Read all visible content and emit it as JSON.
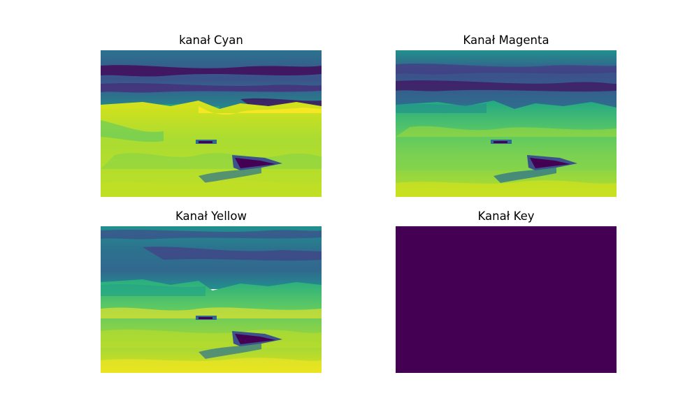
{
  "figure": {
    "background": "#ffffff",
    "colormap": "viridis",
    "palette": {
      "v_dark": "#440154",
      "v_purple": "#433e85",
      "v_blue": "#2c728e",
      "v_teal": "#21908d",
      "v_green": "#27ad81",
      "v_lime": "#5dc963",
      "v_yellowgreen": "#aadc32",
      "v_yellow": "#fde725"
    }
  },
  "chart_data": [
    {
      "type": "heatmap",
      "title": "kanał Cyan",
      "axes": "off",
      "colormap": "viridis",
      "description": "cyan channel image"
    },
    {
      "type": "heatmap",
      "title": "Kanał Magenta",
      "axes": "off",
      "colormap": "viridis",
      "description": "magenta channel image"
    },
    {
      "type": "heatmap",
      "title": "Kanał Yellow",
      "axes": "off",
      "colormap": "viridis",
      "description": "yellow channel image"
    },
    {
      "type": "heatmap",
      "title": "Kanał Key",
      "axes": "off",
      "colormap": "viridis",
      "uniform_value": 0,
      "fill": "#440154"
    }
  ]
}
